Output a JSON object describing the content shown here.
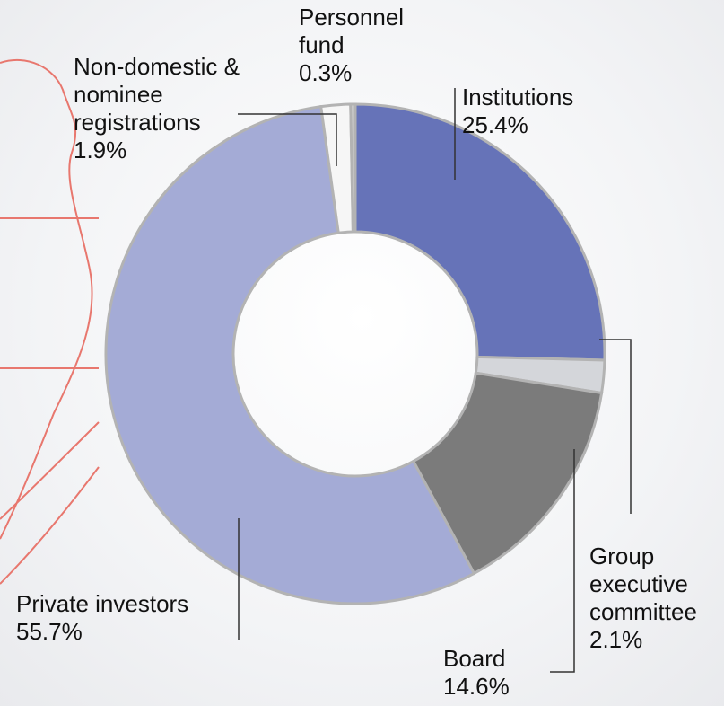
{
  "chart_data": {
    "type": "donut",
    "categories": [
      "Institutions",
      "Group executive committee",
      "Board",
      "Private investors",
      "Non-domestic & nominee registrations",
      "Personnel fund"
    ],
    "values": [
      25.4,
      2.1,
      14.6,
      55.7,
      1.9,
      0.3
    ],
    "value_labels": [
      "25.4%",
      "2.1%",
      "14.6%",
      "55.7%",
      "1.9%",
      "0.3%"
    ],
    "colors": [
      "#6673b8",
      "#d4d6da",
      "#7b7b7b",
      "#a4abd6",
      "#f6f6f6",
      "#d2d2d2"
    ]
  }
}
